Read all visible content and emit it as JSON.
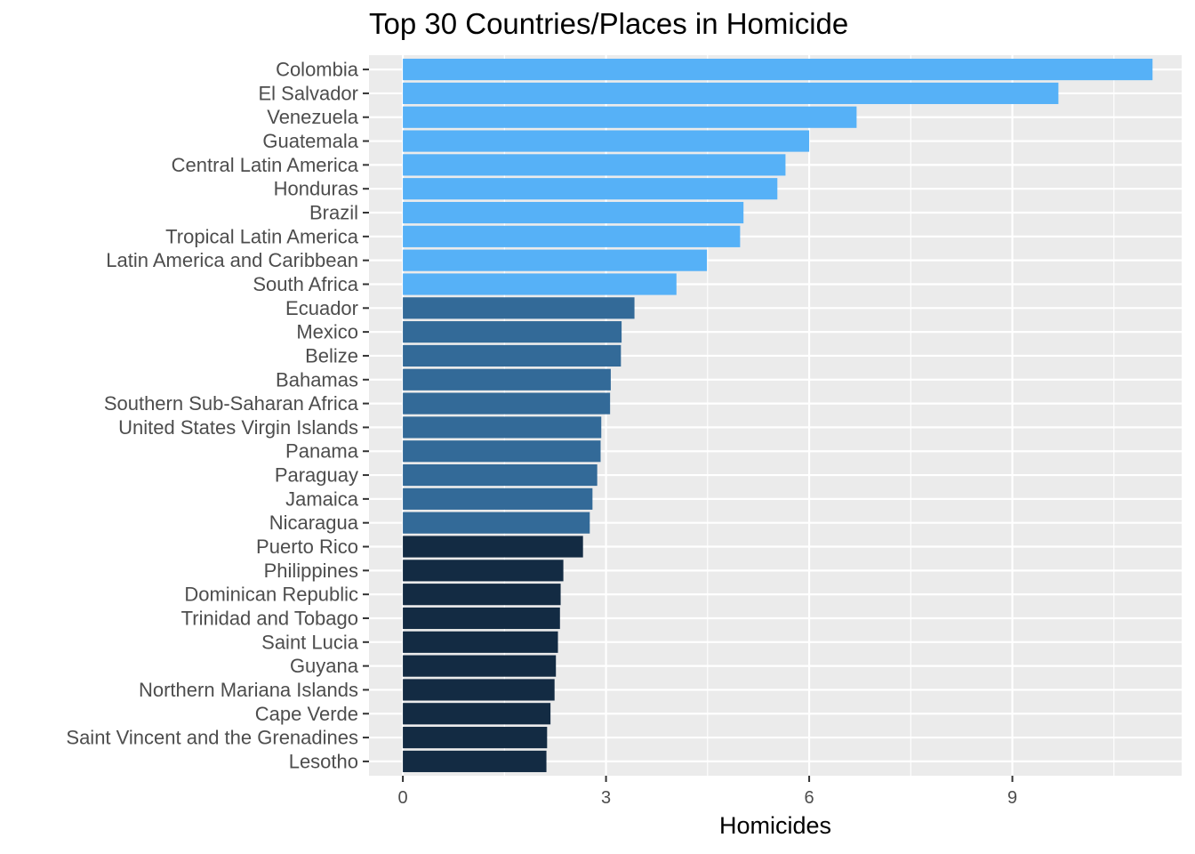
{
  "chart_data": {
    "type": "bar",
    "orientation": "horizontal",
    "title": "Top 30 Countries/Places in Homicide",
    "xlabel": "Homicides",
    "ylabel": "",
    "xlim": [
      -0.5,
      11.5
    ],
    "x_ticks": [
      0,
      3,
      6,
      9
    ],
    "grid": true,
    "legend": "none",
    "categories": [
      "Colombia",
      "El Salvador",
      "Venezuela",
      "Guatemala",
      "Central Latin America",
      "Honduras",
      "Brazil",
      "Tropical Latin America",
      "Latin America and Caribbean",
      "South Africa",
      "Ecuador",
      "Mexico",
      "Belize",
      "Bahamas",
      "Southern Sub-Saharan Africa",
      "United States Virgin Islands",
      "Panama",
      "Paraguay",
      "Jamaica",
      "Nicaragua",
      "Puerto Rico",
      "Philippines",
      "Dominican Republic",
      "Trinidad and Tobago",
      "Saint Lucia",
      "Guyana",
      "Northern Mariana Islands",
      "Cape Verde",
      "Saint Vincent and the Grenadines",
      "Lesotho"
    ],
    "values": [
      11.07,
      9.68,
      6.7,
      6.0,
      5.65,
      5.53,
      5.03,
      4.98,
      4.49,
      4.04,
      3.42,
      3.23,
      3.22,
      3.07,
      3.06,
      2.93,
      2.92,
      2.87,
      2.8,
      2.76,
      2.66,
      2.37,
      2.33,
      2.32,
      2.29,
      2.26,
      2.24,
      2.18,
      2.13,
      2.12
    ],
    "tiers": [
      1,
      1,
      1,
      1,
      1,
      1,
      1,
      1,
      1,
      1,
      2,
      2,
      2,
      2,
      2,
      2,
      2,
      2,
      2,
      2,
      3,
      3,
      3,
      3,
      3,
      3,
      3,
      3,
      3,
      3
    ],
    "colors": {
      "tier1": "#56B1F7",
      "tier2": "#336A98",
      "tier3": "#132B43",
      "panel": "#EBEBEB",
      "grid": "#FFFFFF"
    }
  }
}
